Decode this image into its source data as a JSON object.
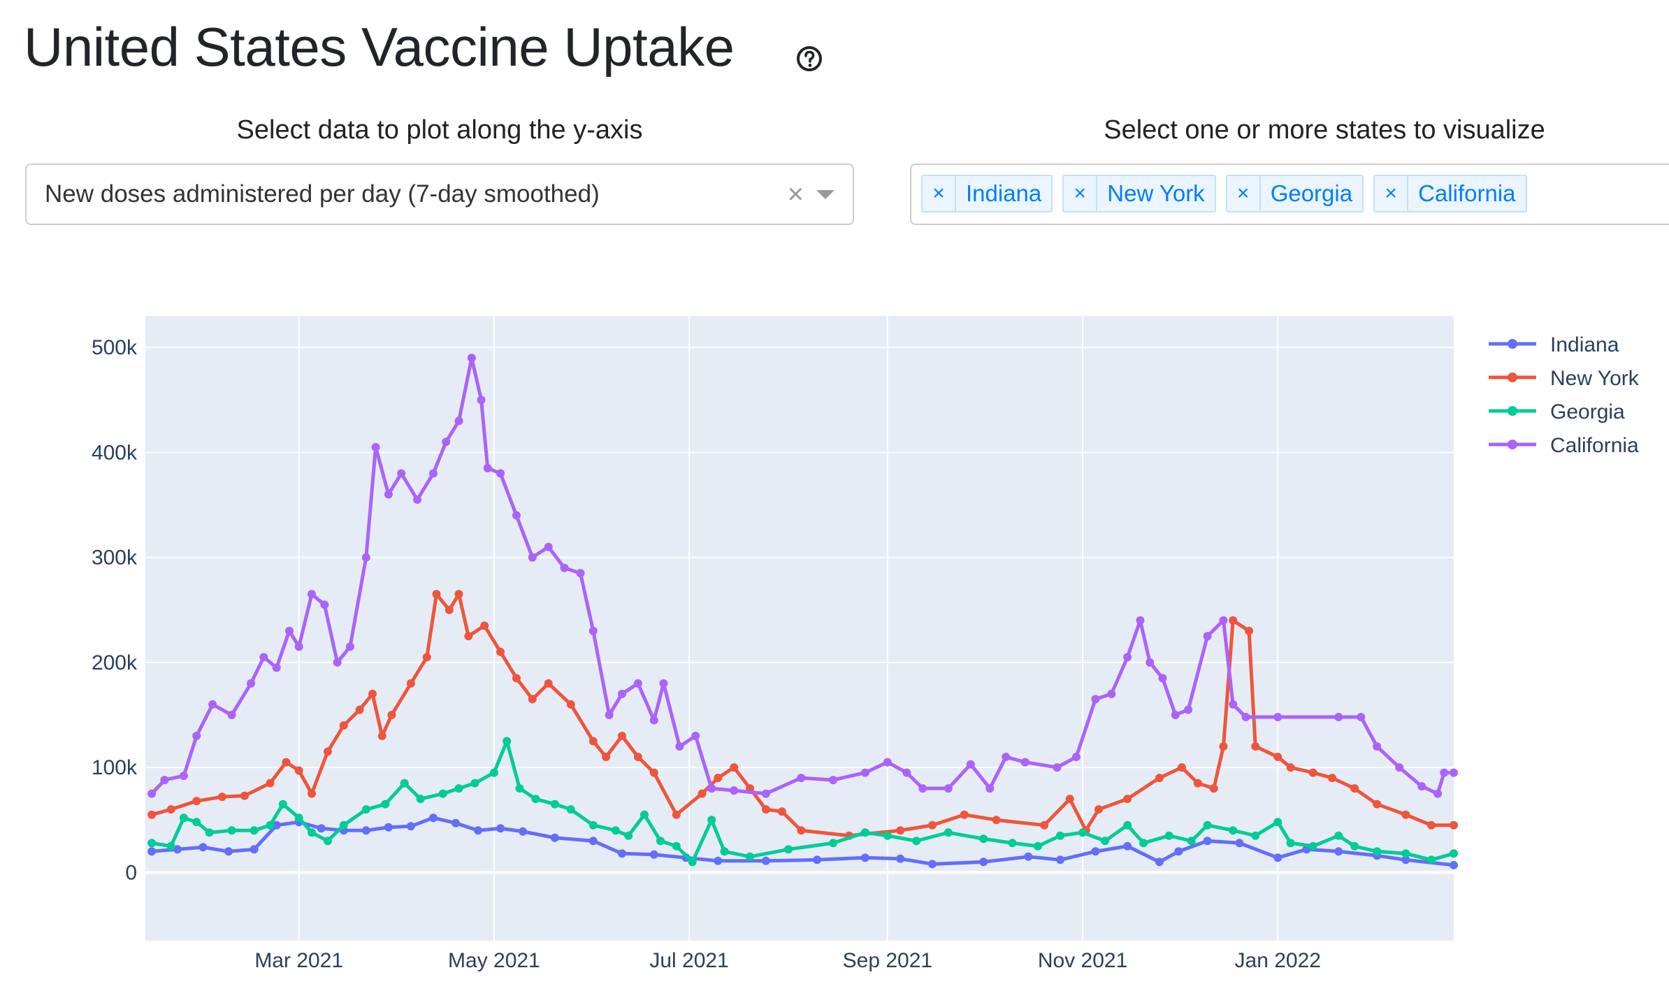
{
  "page": {
    "title": "United States Vaccine Uptake",
    "help_icon": "question-circle-icon"
  },
  "controls": {
    "y_axis_label": "Select data to plot along the y-axis",
    "y_axis_value": "New doses administered per day (7-day smoothed)",
    "clear_glyph": "×",
    "states_label": "Select one or more states to visualize",
    "states": [
      "Indiana",
      "New York",
      "Georgia",
      "California"
    ],
    "tag_remove_glyph": "×"
  },
  "colors": {
    "Indiana": "#636efa",
    "New York": "#ef553b",
    "Georgia": "#00cc96",
    "California": "#ab63fa",
    "plot_bg": "#e5ecf6"
  },
  "chart_data": {
    "type": "line",
    "title": "",
    "xlabel": "",
    "ylabel": "",
    "x_range": [
      "2021-01-12",
      "2022-02-25"
    ],
    "ylim": [
      -65000,
      530000
    ],
    "x_ticks": [
      {
        "date": "2021-03-01",
        "label": "Mar 2021"
      },
      {
        "date": "2021-05-01",
        "label": "May 2021"
      },
      {
        "date": "2021-07-01",
        "label": "Jul 2021"
      },
      {
        "date": "2021-09-01",
        "label": "Sep 2021"
      },
      {
        "date": "2021-11-01",
        "label": "Nov 2021"
      },
      {
        "date": "2022-01-01",
        "label": "Jan 2022"
      }
    ],
    "y_ticks": [
      {
        "value": 0,
        "label": "0"
      },
      {
        "value": 100000,
        "label": "100k"
      },
      {
        "value": 200000,
        "label": "200k"
      },
      {
        "value": 300000,
        "label": "300k"
      },
      {
        "value": 400000,
        "label": "400k"
      },
      {
        "value": 500000,
        "label": "500k"
      }
    ],
    "grid": true,
    "legend_position": "right",
    "series": [
      {
        "name": "Indiana",
        "points": [
          [
            "2021-01-14",
            20000
          ],
          [
            "2021-01-22",
            22000
          ],
          [
            "2021-01-30",
            24000
          ],
          [
            "2021-02-07",
            20000
          ],
          [
            "2021-02-15",
            22000
          ],
          [
            "2021-02-22",
            45000
          ],
          [
            "2021-03-01",
            48000
          ],
          [
            "2021-03-08",
            42000
          ],
          [
            "2021-03-15",
            40000
          ],
          [
            "2021-03-22",
            40000
          ],
          [
            "2021-03-29",
            43000
          ],
          [
            "2021-04-05",
            44000
          ],
          [
            "2021-04-12",
            52000
          ],
          [
            "2021-04-19",
            47000
          ],
          [
            "2021-04-26",
            40000
          ],
          [
            "2021-05-03",
            42000
          ],
          [
            "2021-05-10",
            39000
          ],
          [
            "2021-05-20",
            33000
          ],
          [
            "2021-06-01",
            30000
          ],
          [
            "2021-06-10",
            18000
          ],
          [
            "2021-06-20",
            17000
          ],
          [
            "2021-06-30",
            14000
          ],
          [
            "2021-07-10",
            11000
          ],
          [
            "2021-07-25",
            11000
          ],
          [
            "2021-08-10",
            12000
          ],
          [
            "2021-08-25",
            14000
          ],
          [
            "2021-09-05",
            13000
          ],
          [
            "2021-09-15",
            8000
          ],
          [
            "2021-10-01",
            10000
          ],
          [
            "2021-10-15",
            15000
          ],
          [
            "2021-10-25",
            12000
          ],
          [
            "2021-11-05",
            20000
          ],
          [
            "2021-11-15",
            25000
          ],
          [
            "2021-11-25",
            10000
          ],
          [
            "2021-12-01",
            20000
          ],
          [
            "2021-12-10",
            30000
          ],
          [
            "2021-12-20",
            28000
          ],
          [
            "2022-01-01",
            14000
          ],
          [
            "2022-01-10",
            22000
          ],
          [
            "2022-01-20",
            20000
          ],
          [
            "2022-02-01",
            16000
          ],
          [
            "2022-02-10",
            12000
          ],
          [
            "2022-02-25",
            7000
          ]
        ]
      },
      {
        "name": "New York",
        "points": [
          [
            "2021-01-14",
            55000
          ],
          [
            "2021-01-20",
            60000
          ],
          [
            "2021-01-28",
            68000
          ],
          [
            "2021-02-05",
            72000
          ],
          [
            "2021-02-12",
            73000
          ],
          [
            "2021-02-20",
            85000
          ],
          [
            "2021-02-25",
            105000
          ],
          [
            "2021-03-01",
            97000
          ],
          [
            "2021-03-05",
            75000
          ],
          [
            "2021-03-10",
            115000
          ],
          [
            "2021-03-15",
            140000
          ],
          [
            "2021-03-20",
            155000
          ],
          [
            "2021-03-24",
            170000
          ],
          [
            "2021-03-27",
            130000
          ],
          [
            "2021-03-30",
            150000
          ],
          [
            "2021-04-05",
            180000
          ],
          [
            "2021-04-10",
            205000
          ],
          [
            "2021-04-13",
            265000
          ],
          [
            "2021-04-17",
            250000
          ],
          [
            "2021-04-20",
            265000
          ],
          [
            "2021-04-23",
            225000
          ],
          [
            "2021-04-28",
            235000
          ],
          [
            "2021-05-03",
            210000
          ],
          [
            "2021-05-08",
            185000
          ],
          [
            "2021-05-13",
            165000
          ],
          [
            "2021-05-18",
            180000
          ],
          [
            "2021-05-25",
            160000
          ],
          [
            "2021-06-01",
            125000
          ],
          [
            "2021-06-05",
            110000
          ],
          [
            "2021-06-10",
            130000
          ],
          [
            "2021-06-15",
            110000
          ],
          [
            "2021-06-20",
            95000
          ],
          [
            "2021-06-27",
            55000
          ],
          [
            "2021-07-05",
            75000
          ],
          [
            "2021-07-10",
            90000
          ],
          [
            "2021-07-15",
            100000
          ],
          [
            "2021-07-20",
            80000
          ],
          [
            "2021-07-25",
            60000
          ],
          [
            "2021-07-30",
            58000
          ],
          [
            "2021-08-05",
            40000
          ],
          [
            "2021-08-20",
            35000
          ],
          [
            "2021-09-05",
            40000
          ],
          [
            "2021-09-15",
            45000
          ],
          [
            "2021-09-25",
            55000
          ],
          [
            "2021-10-05",
            50000
          ],
          [
            "2021-10-20",
            45000
          ],
          [
            "2021-10-28",
            70000
          ],
          [
            "2021-11-02",
            40000
          ],
          [
            "2021-11-06",
            60000
          ],
          [
            "2021-11-15",
            70000
          ],
          [
            "2021-11-25",
            90000
          ],
          [
            "2021-12-02",
            100000
          ],
          [
            "2021-12-07",
            85000
          ],
          [
            "2021-12-12",
            80000
          ],
          [
            "2021-12-15",
            120000
          ],
          [
            "2021-12-18",
            240000
          ],
          [
            "2021-12-23",
            230000
          ],
          [
            "2021-12-25",
            120000
          ],
          [
            "2022-01-01",
            110000
          ],
          [
            "2022-01-05",
            100000
          ],
          [
            "2022-01-12",
            95000
          ],
          [
            "2022-01-18",
            90000
          ],
          [
            "2022-01-25",
            80000
          ],
          [
            "2022-02-01",
            65000
          ],
          [
            "2022-02-10",
            55000
          ],
          [
            "2022-02-18",
            45000
          ],
          [
            "2022-02-25",
            45000
          ]
        ]
      },
      {
        "name": "Georgia",
        "points": [
          [
            "2021-01-14",
            28000
          ],
          [
            "2021-01-20",
            25000
          ],
          [
            "2021-01-24",
            52000
          ],
          [
            "2021-01-28",
            48000
          ],
          [
            "2021-02-01",
            38000
          ],
          [
            "2021-02-08",
            40000
          ],
          [
            "2021-02-15",
            40000
          ],
          [
            "2021-02-20",
            45000
          ],
          [
            "2021-02-24",
            65000
          ],
          [
            "2021-03-01",
            52000
          ],
          [
            "2021-03-05",
            38000
          ],
          [
            "2021-03-10",
            30000
          ],
          [
            "2021-03-15",
            45000
          ],
          [
            "2021-03-22",
            60000
          ],
          [
            "2021-03-28",
            65000
          ],
          [
            "2021-04-03",
            85000
          ],
          [
            "2021-04-08",
            70000
          ],
          [
            "2021-04-15",
            75000
          ],
          [
            "2021-04-20",
            80000
          ],
          [
            "2021-04-25",
            85000
          ],
          [
            "2021-05-01",
            95000
          ],
          [
            "2021-05-05",
            125000
          ],
          [
            "2021-05-09",
            80000
          ],
          [
            "2021-05-14",
            70000
          ],
          [
            "2021-05-20",
            65000
          ],
          [
            "2021-05-25",
            60000
          ],
          [
            "2021-06-01",
            45000
          ],
          [
            "2021-06-08",
            40000
          ],
          [
            "2021-06-12",
            35000
          ],
          [
            "2021-06-17",
            55000
          ],
          [
            "2021-06-22",
            30000
          ],
          [
            "2021-06-27",
            25000
          ],
          [
            "2021-07-02",
            10000
          ],
          [
            "2021-07-08",
            50000
          ],
          [
            "2021-07-12",
            20000
          ],
          [
            "2021-07-20",
            15000
          ],
          [
            "2021-08-01",
            22000
          ],
          [
            "2021-08-15",
            28000
          ],
          [
            "2021-08-25",
            38000
          ],
          [
            "2021-09-01",
            35000
          ],
          [
            "2021-09-10",
            30000
          ],
          [
            "2021-09-20",
            38000
          ],
          [
            "2021-10-01",
            32000
          ],
          [
            "2021-10-10",
            28000
          ],
          [
            "2021-10-18",
            25000
          ],
          [
            "2021-10-25",
            35000
          ],
          [
            "2021-11-01",
            38000
          ],
          [
            "2021-11-08",
            30000
          ],
          [
            "2021-11-15",
            45000
          ],
          [
            "2021-11-20",
            28000
          ],
          [
            "2021-11-28",
            35000
          ],
          [
            "2021-12-05",
            30000
          ],
          [
            "2021-12-10",
            45000
          ],
          [
            "2021-12-18",
            40000
          ],
          [
            "2021-12-25",
            35000
          ],
          [
            "2022-01-01",
            48000
          ],
          [
            "2022-01-05",
            28000
          ],
          [
            "2022-01-12",
            25000
          ],
          [
            "2022-01-20",
            35000
          ],
          [
            "2022-01-25",
            25000
          ],
          [
            "2022-02-01",
            20000
          ],
          [
            "2022-02-10",
            18000
          ],
          [
            "2022-02-18",
            12000
          ],
          [
            "2022-02-25",
            18000
          ]
        ]
      },
      {
        "name": "California",
        "points": [
          [
            "2021-01-14",
            75000
          ],
          [
            "2021-01-18",
            88000
          ],
          [
            "2021-01-24",
            92000
          ],
          [
            "2021-01-28",
            130000
          ],
          [
            "2021-02-02",
            160000
          ],
          [
            "2021-02-08",
            150000
          ],
          [
            "2021-02-14",
            180000
          ],
          [
            "2021-02-18",
            205000
          ],
          [
            "2021-02-22",
            195000
          ],
          [
            "2021-02-26",
            230000
          ],
          [
            "2021-03-01",
            215000
          ],
          [
            "2021-03-05",
            265000
          ],
          [
            "2021-03-09",
            255000
          ],
          [
            "2021-03-13",
            200000
          ],
          [
            "2021-03-17",
            215000
          ],
          [
            "2021-03-22",
            300000
          ],
          [
            "2021-03-25",
            405000
          ],
          [
            "2021-03-29",
            360000
          ],
          [
            "2021-04-02",
            380000
          ],
          [
            "2021-04-07",
            355000
          ],
          [
            "2021-04-12",
            380000
          ],
          [
            "2021-04-16",
            410000
          ],
          [
            "2021-04-20",
            430000
          ],
          [
            "2021-04-24",
            490000
          ],
          [
            "2021-04-27",
            450000
          ],
          [
            "2021-04-29",
            385000
          ],
          [
            "2021-05-03",
            380000
          ],
          [
            "2021-05-08",
            340000
          ],
          [
            "2021-05-13",
            300000
          ],
          [
            "2021-05-18",
            310000
          ],
          [
            "2021-05-23",
            290000
          ],
          [
            "2021-05-28",
            285000
          ],
          [
            "2021-06-01",
            230000
          ],
          [
            "2021-06-06",
            150000
          ],
          [
            "2021-06-10",
            170000
          ],
          [
            "2021-06-15",
            180000
          ],
          [
            "2021-06-20",
            145000
          ],
          [
            "2021-06-23",
            180000
          ],
          [
            "2021-06-28",
            120000
          ],
          [
            "2021-07-03",
            130000
          ],
          [
            "2021-07-08",
            80000
          ],
          [
            "2021-07-15",
            78000
          ],
          [
            "2021-07-25",
            75000
          ],
          [
            "2021-08-05",
            90000
          ],
          [
            "2021-08-15",
            88000
          ],
          [
            "2021-08-25",
            95000
          ],
          [
            "2021-09-01",
            105000
          ],
          [
            "2021-09-07",
            95000
          ],
          [
            "2021-09-12",
            80000
          ],
          [
            "2021-09-20",
            80000
          ],
          [
            "2021-09-27",
            103000
          ],
          [
            "2021-10-03",
            80000
          ],
          [
            "2021-10-08",
            110000
          ],
          [
            "2021-10-14",
            105000
          ],
          [
            "2021-10-24",
            100000
          ],
          [
            "2021-10-30",
            110000
          ],
          [
            "2021-11-05",
            165000
          ],
          [
            "2021-11-10",
            170000
          ],
          [
            "2021-11-15",
            205000
          ],
          [
            "2021-11-19",
            240000
          ],
          [
            "2021-11-22",
            200000
          ],
          [
            "2021-11-26",
            185000
          ],
          [
            "2021-11-30",
            150000
          ],
          [
            "2021-12-04",
            155000
          ],
          [
            "2021-12-10",
            225000
          ],
          [
            "2021-12-15",
            240000
          ],
          [
            "2021-12-18",
            160000
          ],
          [
            "2021-12-22",
            148000
          ],
          [
            "2022-01-01",
            148000
          ],
          [
            "2022-01-20",
            148000
          ],
          [
            "2022-01-27",
            148000
          ],
          [
            "2022-02-01",
            120000
          ],
          [
            "2022-02-08",
            100000
          ],
          [
            "2022-02-15",
            82000
          ],
          [
            "2022-02-20",
            75000
          ],
          [
            "2022-02-22",
            95000
          ],
          [
            "2022-02-25",
            95000
          ]
        ]
      }
    ]
  }
}
